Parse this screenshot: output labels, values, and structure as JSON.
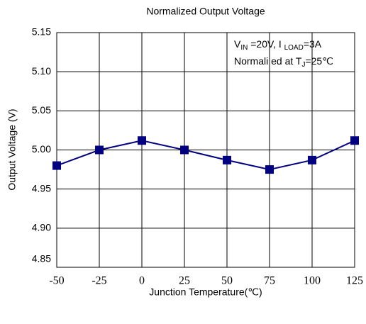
{
  "chart_data": {
    "type": "line",
    "title": "Normalized Output Voltage",
    "xlabel": "Junction Temperature(℃)",
    "ylabel": "Output Voltage (V)",
    "annotation": {
      "line1": [
        "V",
        "IN",
        " =20V, I ",
        "LOAD",
        "=3A"
      ],
      "line2": [
        "Normali ed at T",
        "J",
        "=25℃"
      ]
    },
    "x": [
      -50,
      -25,
      0,
      25,
      50,
      75,
      100,
      125
    ],
    "series": [
      {
        "name": "Output Voltage",
        "color": "#000080",
        "values": [
          4.98,
          5.0,
          5.012,
          5.0,
          4.987,
          4.975,
          4.987,
          5.012
        ]
      }
    ],
    "xlim": [
      -50,
      125
    ],
    "xticks": [
      -50,
      -25,
      0,
      25,
      50,
      75,
      100,
      125
    ],
    "ylim": [
      4.85,
      5.15
    ],
    "yticks": [
      {
        "value": 4.85,
        "label": "4.85"
      },
      {
        "value": 4.9,
        "label": "4.90"
      },
      {
        "value": 4.95,
        "label": "4.95"
      },
      {
        "value": 5.0,
        "label": "5.00"
      },
      {
        "value": 5.05,
        "label": "5.05"
      },
      {
        "value": 5.1,
        "label": "5.10"
      },
      {
        "value": 5.15,
        "label": "5.15"
      }
    ],
    "grid": true
  }
}
